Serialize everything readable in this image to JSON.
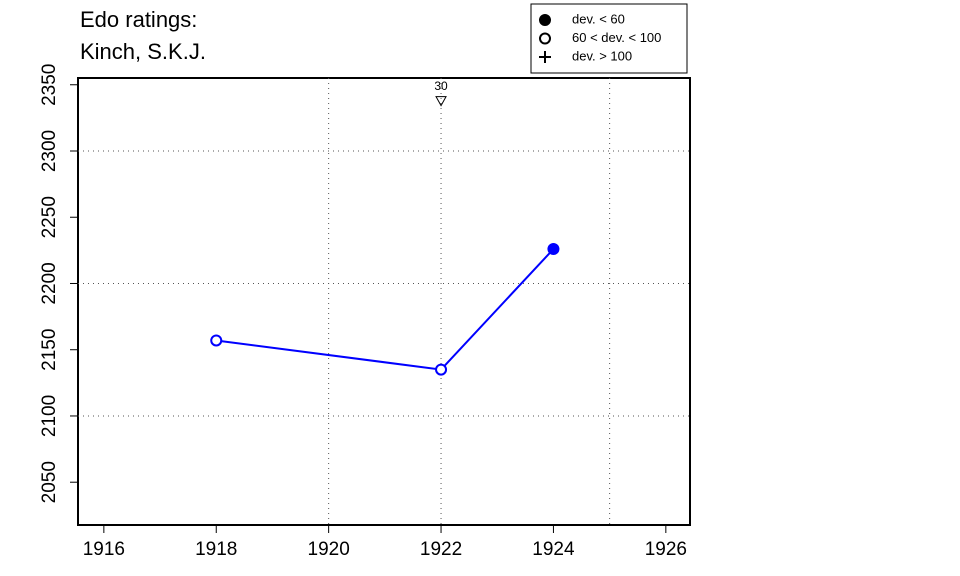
{
  "chart_data": {
    "type": "line",
    "title_lines": [
      "Edo ratings:",
      "Kinch, S.K.J."
    ],
    "x": [
      1918,
      1922,
      1924
    ],
    "series": [
      {
        "color": "#0000ff",
        "values": [
          2157,
          2135,
          2226
        ],
        "markers": [
          "open",
          "open",
          "filled"
        ]
      }
    ],
    "xlim": [
      1915.54,
      1926.43
    ],
    "ylim": [
      2017.7,
      2355.1
    ],
    "xticks": [
      1916,
      1918,
      1920,
      1922,
      1924,
      1926
    ],
    "yticks": [
      2050,
      2100,
      2150,
      2200,
      2250,
      2300,
      2350
    ],
    "xgrid": [
      1920,
      1922,
      1925
    ],
    "ygrid": [
      2100,
      2200,
      2300
    ],
    "annotations": [
      {
        "x": 1922,
        "y": 2338,
        "label": 30
      }
    ],
    "legend": [
      {
        "label": "dev. < 60",
        "marker": "filled"
      },
      {
        "label": "60 < dev. < 100",
        "marker": "open"
      },
      {
        "label": "dev. > 100",
        "marker": "plus"
      }
    ]
  }
}
